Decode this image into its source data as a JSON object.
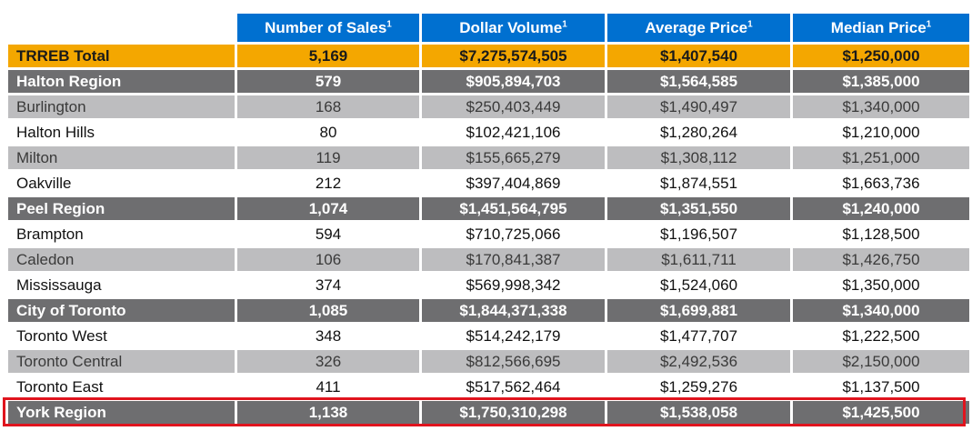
{
  "table": {
    "columns": [
      "Number of Sales",
      "Dollar Volume",
      "Average Price",
      "Median Price"
    ],
    "footnote_mark": "1",
    "rows": [
      {
        "name": "TRREB Total",
        "sales": "5,169",
        "volume": "$7,275,574,505",
        "avg": "$1,407,540",
        "median": "$1,250,000",
        "style": "total"
      },
      {
        "name": "Halton Region",
        "sales": "579",
        "volume": "$905,894,703",
        "avg": "$1,564,585",
        "median": "$1,385,000",
        "style": "region"
      },
      {
        "name": "Burlington",
        "sales": "168",
        "volume": "$250,403,449",
        "avg": "$1,490,497",
        "median": "$1,340,000",
        "style": "alt"
      },
      {
        "name": "Halton Hills",
        "sales": "80",
        "volume": "$102,421,106",
        "avg": "$1,280,264",
        "median": "$1,210,000",
        "style": "plain"
      },
      {
        "name": "Milton",
        "sales": "119",
        "volume": "$155,665,279",
        "avg": "$1,308,112",
        "median": "$1,251,000",
        "style": "alt"
      },
      {
        "name": "Oakville",
        "sales": "212",
        "volume": "$397,404,869",
        "avg": "$1,874,551",
        "median": "$1,663,736",
        "style": "plain"
      },
      {
        "name": "Peel Region",
        "sales": "1,074",
        "volume": "$1,451,564,795",
        "avg": "$1,351,550",
        "median": "$1,240,000",
        "style": "region"
      },
      {
        "name": "Brampton",
        "sales": "594",
        "volume": "$710,725,066",
        "avg": "$1,196,507",
        "median": "$1,128,500",
        "style": "plain"
      },
      {
        "name": "Caledon",
        "sales": "106",
        "volume": "$170,841,387",
        "avg": "$1,611,711",
        "median": "$1,426,750",
        "style": "alt"
      },
      {
        "name": "Mississauga",
        "sales": "374",
        "volume": "$569,998,342",
        "avg": "$1,524,060",
        "median": "$1,350,000",
        "style": "plain"
      },
      {
        "name": "City of Toronto",
        "sales": "1,085",
        "volume": "$1,844,371,338",
        "avg": "$1,699,881",
        "median": "$1,340,000",
        "style": "region"
      },
      {
        "name": "Toronto West",
        "sales": "348",
        "volume": "$514,242,179",
        "avg": "$1,477,707",
        "median": "$1,222,500",
        "style": "plain"
      },
      {
        "name": "Toronto Central",
        "sales": "326",
        "volume": "$812,566,695",
        "avg": "$2,492,536",
        "median": "$2,150,000",
        "style": "alt"
      },
      {
        "name": "Toronto East",
        "sales": "411",
        "volume": "$517,562,464",
        "avg": "$1,259,276",
        "median": "$1,137,500",
        "style": "plain"
      },
      {
        "name": "York Region",
        "sales": "1,138",
        "volume": "$1,750,310,298",
        "avg": "$1,538,058",
        "median": "$1,425,500",
        "style": "region",
        "highlighted": true
      }
    ]
  },
  "colors": {
    "header_blue": "#0070d0",
    "total_orange": "#f4a700",
    "region_gray": "#6e6e70",
    "alt_gray": "#bdbdbf",
    "highlight_red": "#e0141e"
  }
}
